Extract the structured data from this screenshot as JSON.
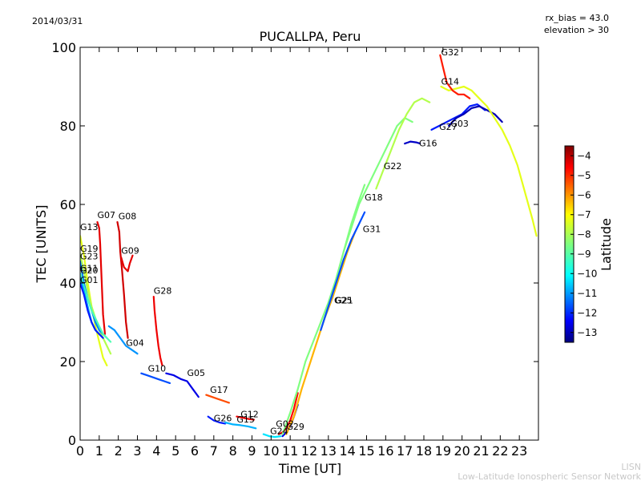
{
  "header": {
    "date": "2014/03/31",
    "rx_bias": "rx_bias = 43.0",
    "elevation": "elevation > 30"
  },
  "footer": {
    "credit_short": "LISN",
    "credit_long": "Low-Latitude Ionospheric Sensor Network"
  },
  "colorbar": {
    "label": "Latitude",
    "min": -13.5,
    "max": -3.5,
    "ticks": [
      -4,
      -5,
      -6,
      -7,
      -8,
      -9,
      -10,
      -11,
      -12,
      -13
    ],
    "tick_labels": [
      "−4",
      "−5",
      "−6",
      "−7",
      "−8",
      "−9",
      "−10",
      "−11",
      "−12",
      "−13"
    ],
    "colormap": "jet"
  },
  "chart_data": {
    "type": "scatter",
    "title": "PUCALLPA, Peru",
    "xlabel": "Time [UT]",
    "ylabel": "TEC [UNITS]",
    "xlim": [
      0,
      24
    ],
    "ylim": [
      0,
      100
    ],
    "xticks": [
      0,
      1,
      2,
      3,
      4,
      5,
      6,
      7,
      8,
      9,
      10,
      11,
      12,
      13,
      14,
      15,
      16,
      17,
      18,
      19,
      20,
      21,
      22,
      23
    ],
    "yticks": [
      0,
      20,
      40,
      60,
      80,
      100
    ],
    "grid": false,
    "satellite_labels": [
      {
        "name": "G13",
        "x": 0.0,
        "y": 53.5
      },
      {
        "name": "G07",
        "x": 0.9,
        "y": 56.5
      },
      {
        "name": "G08",
        "x": 2.0,
        "y": 56.2
      },
      {
        "name": "G19",
        "x": 0.0,
        "y": 48.0
      },
      {
        "name": "G23",
        "x": 0.0,
        "y": 46.0
      },
      {
        "name": "G09",
        "x": 2.15,
        "y": 47.5
      },
      {
        "name": "G11",
        "x": 0.0,
        "y": 43.0
      },
      {
        "name": "G20",
        "x": 0.0,
        "y": 42.5
      },
      {
        "name": "G01",
        "x": 0.0,
        "y": 40.0
      },
      {
        "name": "G28",
        "x": 3.85,
        "y": 37.2
      },
      {
        "name": "G04",
        "x": 2.4,
        "y": 24.0
      },
      {
        "name": "G10",
        "x": 3.55,
        "y": 17.5
      },
      {
        "name": "G05",
        "x": 5.6,
        "y": 16.3
      },
      {
        "name": "G17",
        "x": 6.8,
        "y": 12.0
      },
      {
        "name": "G12",
        "x": 8.4,
        "y": 5.8
      },
      {
        "name": "G26",
        "x": 7.0,
        "y": 4.8
      },
      {
        "name": "G15",
        "x": 8.2,
        "y": 4.5
      },
      {
        "name": "G02",
        "x": 10.25,
        "y": 3.4
      },
      {
        "name": "G29",
        "x": 10.8,
        "y": 2.7
      },
      {
        "name": "G24",
        "x": 9.95,
        "y": 1.5
      },
      {
        "name": "G25",
        "x": 13.3,
        "y": 34.8
      },
      {
        "name": "G21",
        "x": 13.35,
        "y": 34.8
      },
      {
        "name": "G18",
        "x": 14.9,
        "y": 61.0
      },
      {
        "name": "G31",
        "x": 14.8,
        "y": 53.0
      },
      {
        "name": "G22",
        "x": 15.9,
        "y": 69.0
      },
      {
        "name": "G16",
        "x": 17.75,
        "y": 74.8
      },
      {
        "name": "G27",
        "x": 18.8,
        "y": 79.0
      },
      {
        "name": "G03",
        "x": 19.4,
        "y": 79.8
      },
      {
        "name": "G14",
        "x": 18.9,
        "y": 90.5
      },
      {
        "name": "G32",
        "x": 18.9,
        "y": 98.0
      }
    ],
    "series": [
      {
        "name": "G13",
        "latitude": -7.5,
        "points": [
          [
            0.0,
            52
          ],
          [
            0.2,
            47
          ],
          [
            0.4,
            40
          ],
          [
            0.6,
            34
          ],
          [
            0.8,
            29
          ],
          [
            1.0,
            25
          ],
          [
            1.2,
            21
          ],
          [
            1.4,
            19
          ]
        ]
      },
      {
        "name": "G07",
        "latitude": -4.5,
        "points": [
          [
            0.9,
            55.5
          ],
          [
            1.0,
            54
          ],
          [
            1.05,
            50
          ],
          [
            1.1,
            44
          ],
          [
            1.15,
            38
          ],
          [
            1.2,
            32
          ],
          [
            1.3,
            27
          ]
        ]
      },
      {
        "name": "G08",
        "latitude": -4.3,
        "points": [
          [
            1.95,
            55.5
          ],
          [
            2.05,
            53
          ],
          [
            2.1,
            48
          ],
          [
            2.2,
            43
          ],
          [
            2.3,
            37
          ],
          [
            2.4,
            30
          ],
          [
            2.5,
            26
          ]
        ]
      },
      {
        "name": "G19",
        "latitude": -8.0,
        "points": [
          [
            0.0,
            47.5
          ],
          [
            0.2,
            43
          ],
          [
            0.4,
            38
          ],
          [
            0.6,
            34
          ],
          [
            0.8,
            31
          ],
          [
            1.0,
            28
          ],
          [
            1.3,
            25
          ],
          [
            1.6,
            22
          ]
        ]
      },
      {
        "name": "G23",
        "latitude": -11.0,
        "points": [
          [
            0.0,
            45.5
          ],
          [
            0.2,
            40
          ],
          [
            0.4,
            36
          ],
          [
            0.6,
            33
          ],
          [
            0.8,
            30
          ],
          [
            1.0,
            28
          ],
          [
            1.2,
            27
          ],
          [
            1.4,
            26
          ]
        ]
      },
      {
        "name": "G09",
        "latitude": -4.5,
        "points": [
          [
            2.15,
            46.5
          ],
          [
            2.3,
            44
          ],
          [
            2.5,
            43
          ],
          [
            2.6,
            45
          ],
          [
            2.75,
            47
          ]
        ]
      },
      {
        "name": "G11",
        "latitude": -9.0,
        "points": [
          [
            0.0,
            42.5
          ],
          [
            0.2,
            39
          ],
          [
            0.4,
            36
          ],
          [
            0.6,
            33
          ],
          [
            0.8,
            31
          ],
          [
            1.0,
            29
          ],
          [
            1.2,
            27
          ],
          [
            1.4,
            26
          ],
          [
            1.6,
            25
          ]
        ]
      },
      {
        "name": "G20",
        "latitude": -10.5,
        "points": [
          [
            0.0,
            41.5
          ],
          [
            0.2,
            38
          ],
          [
            0.4,
            34
          ],
          [
            0.6,
            30
          ],
          [
            0.8,
            28
          ],
          [
            1.0,
            27
          ]
        ]
      },
      {
        "name": "G01",
        "latitude": -12.0,
        "points": [
          [
            0.0,
            40
          ],
          [
            0.2,
            37
          ],
          [
            0.4,
            33
          ],
          [
            0.6,
            30
          ],
          [
            0.8,
            28
          ],
          [
            1.0,
            27
          ],
          [
            1.2,
            26
          ]
        ]
      },
      {
        "name": "G28",
        "latitude": -4.6,
        "points": [
          [
            3.85,
            36.5
          ],
          [
            3.9,
            33
          ],
          [
            4.0,
            28
          ],
          [
            4.1,
            24
          ],
          [
            4.2,
            21
          ],
          [
            4.3,
            19
          ]
        ]
      },
      {
        "name": "G04",
        "latitude": -10.8,
        "points": [
          [
            1.5,
            29
          ],
          [
            1.8,
            28
          ],
          [
            2.1,
            26
          ],
          [
            2.4,
            24
          ],
          [
            2.7,
            23
          ],
          [
            3.0,
            22
          ]
        ]
      },
      {
        "name": "G10",
        "latitude": -11.5,
        "points": [
          [
            3.2,
            17
          ],
          [
            3.5,
            16.5
          ],
          [
            3.8,
            16
          ],
          [
            4.1,
            15.5
          ],
          [
            4.4,
            15
          ],
          [
            4.7,
            14.5
          ]
        ]
      },
      {
        "name": "G05",
        "latitude": -12.5,
        "points": [
          [
            4.5,
            17
          ],
          [
            4.9,
            16.5
          ],
          [
            5.3,
            15.5
          ],
          [
            5.6,
            15
          ],
          [
            5.9,
            13
          ],
          [
            6.2,
            11
          ]
        ]
      },
      {
        "name": "G17",
        "latitude": -5.5,
        "points": [
          [
            6.6,
            11.5
          ],
          [
            6.9,
            11
          ],
          [
            7.2,
            10.5
          ],
          [
            7.5,
            10
          ],
          [
            7.8,
            9.5
          ]
        ]
      },
      {
        "name": "G12",
        "latitude": -4.6,
        "points": [
          [
            8.2,
            6
          ],
          [
            8.5,
            5.7
          ],
          [
            8.8,
            5.4
          ],
          [
            9.1,
            5.2
          ]
        ]
      },
      {
        "name": "G26",
        "latitude": -12.0,
        "points": [
          [
            6.7,
            6
          ],
          [
            7.0,
            5
          ],
          [
            7.3,
            4.5
          ],
          [
            7.6,
            4.2
          ]
        ]
      },
      {
        "name": "G15",
        "latitude": -10.5,
        "points": [
          [
            7.6,
            4.5
          ],
          [
            8.0,
            4
          ],
          [
            8.4,
            3.8
          ],
          [
            8.8,
            3.5
          ],
          [
            9.2,
            3
          ]
        ]
      },
      {
        "name": "G02",
        "latitude": -4.8,
        "points": [
          [
            10.4,
            1.5
          ],
          [
            10.6,
            2
          ],
          [
            10.8,
            3
          ],
          [
            11.0,
            5
          ],
          [
            11.2,
            8
          ],
          [
            11.4,
            12
          ]
        ]
      },
      {
        "name": "G29",
        "latitude": -12.5,
        "points": [
          [
            10.6,
            1
          ],
          [
            10.8,
            2
          ],
          [
            11.0,
            3.5
          ],
          [
            11.2,
            6
          ],
          [
            11.4,
            9
          ]
        ]
      },
      {
        "name": "G24",
        "latitude": -10.0,
        "points": [
          [
            9.6,
            1.5
          ],
          [
            9.9,
            1
          ],
          [
            10.2,
            0.8
          ],
          [
            10.5,
            1
          ]
        ]
      },
      {
        "name": "G21",
        "latitude": -8.5,
        "points": [
          [
            10.6,
            1.5
          ],
          [
            11.0,
            7
          ],
          [
            11.4,
            13
          ],
          [
            11.8,
            20
          ],
          [
            12.2,
            25
          ],
          [
            12.6,
            30
          ],
          [
            13.0,
            35
          ],
          [
            13.4,
            41
          ],
          [
            13.8,
            48
          ],
          [
            14.2,
            55
          ],
          [
            14.6,
            61
          ],
          [
            14.9,
            65
          ]
        ]
      },
      {
        "name": "G25",
        "latitude": -6.5,
        "points": [
          [
            10.8,
            1.5
          ],
          [
            11.2,
            6
          ],
          [
            11.6,
            13
          ],
          [
            12.0,
            19
          ],
          [
            12.4,
            25
          ],
          [
            12.8,
            31
          ],
          [
            13.2,
            36
          ],
          [
            13.6,
            42
          ],
          [
            14.0,
            48
          ],
          [
            14.4,
            53
          ]
        ]
      },
      {
        "name": "G18",
        "latitude": -8.5,
        "points": [
          [
            13.8,
            48
          ],
          [
            14.2,
            54
          ],
          [
            14.6,
            60
          ],
          [
            15.0,
            64
          ],
          [
            15.4,
            68
          ],
          [
            15.8,
            72
          ],
          [
            16.2,
            76
          ],
          [
            16.6,
            80
          ],
          [
            17.0,
            82
          ],
          [
            17.4,
            81
          ]
        ]
      },
      {
        "name": "G31",
        "latitude": -11.5,
        "points": [
          [
            12.6,
            28
          ],
          [
            13.0,
            34
          ],
          [
            13.4,
            40
          ],
          [
            13.8,
            46
          ],
          [
            14.2,
            51
          ],
          [
            14.6,
            55
          ],
          [
            14.9,
            58
          ]
        ]
      },
      {
        "name": "G22",
        "latitude": -8.0,
        "points": [
          [
            15.5,
            64
          ],
          [
            15.9,
            69
          ],
          [
            16.3,
            74
          ],
          [
            16.7,
            79
          ],
          [
            17.1,
            83
          ],
          [
            17.5,
            86
          ],
          [
            17.9,
            87
          ],
          [
            18.3,
            86
          ]
        ]
      },
      {
        "name": "G16",
        "latitude": -12.8,
        "points": [
          [
            17.0,
            75.5
          ],
          [
            17.3,
            76
          ],
          [
            17.6,
            75.8
          ],
          [
            17.8,
            75.5
          ]
        ]
      },
      {
        "name": "G27",
        "latitude": -12.0,
        "points": [
          [
            18.4,
            79
          ],
          [
            18.8,
            80
          ],
          [
            19.2,
            81
          ],
          [
            19.6,
            82
          ],
          [
            20.0,
            83
          ],
          [
            20.4,
            85
          ],
          [
            20.8,
            85.5
          ],
          [
            21.2,
            84
          ]
        ]
      },
      {
        "name": "G03",
        "latitude": -13.0,
        "points": [
          [
            19.3,
            80
          ],
          [
            19.7,
            82
          ],
          [
            20.1,
            83
          ],
          [
            20.5,
            84.5
          ],
          [
            20.9,
            85
          ],
          [
            21.3,
            84
          ],
          [
            21.7,
            83
          ],
          [
            22.1,
            81
          ]
        ]
      },
      {
        "name": "G14",
        "latitude": -7.5,
        "points": [
          [
            18.9,
            90
          ],
          [
            19.3,
            89
          ],
          [
            19.7,
            89.5
          ],
          [
            20.1,
            90
          ],
          [
            20.5,
            89
          ],
          [
            20.9,
            87
          ],
          [
            21.3,
            85
          ],
          [
            21.7,
            82
          ],
          [
            22.1,
            79
          ],
          [
            22.5,
            75
          ],
          [
            22.9,
            70
          ],
          [
            23.3,
            63
          ],
          [
            23.7,
            56
          ],
          [
            23.9,
            52
          ]
        ]
      },
      {
        "name": "G32",
        "latitude": -5.0,
        "points": [
          [
            18.85,
            98
          ],
          [
            19.0,
            95
          ],
          [
            19.2,
            91
          ],
          [
            19.5,
            89
          ],
          [
            19.8,
            88
          ],
          [
            20.1,
            88
          ],
          [
            20.4,
            87
          ]
        ]
      }
    ]
  }
}
